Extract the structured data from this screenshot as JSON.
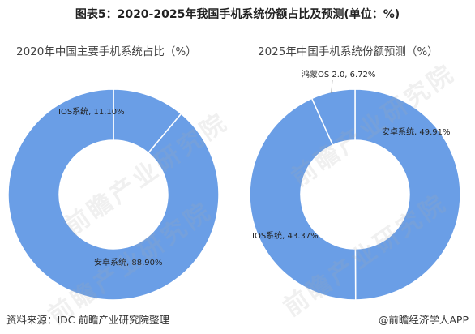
{
  "title": "图表5：2020-2025年我国手机系统份额占比及预测(单位：%)",
  "footer": {
    "source": "资料来源：IDC 前瞻产业研究院整理",
    "brand": "@前瞻经济学人APP"
  },
  "watermark": {
    "text": "前瞻产业研究院"
  },
  "colors": {
    "android": "#6a9ee6",
    "ios": "#6a9ee6",
    "hongmeng": "#6a9ee6",
    "border": "#ffffff"
  },
  "chart_data": [
    {
      "type": "pie",
      "donut": true,
      "title": "2020年中国主要手机系统占比（%）",
      "slices": [
        {
          "label": "IOS系统, 11.10%",
          "value": 11.1
        },
        {
          "label": "安卓系统, 88.90%",
          "value": 88.9
        }
      ]
    },
    {
      "type": "pie",
      "donut": true,
      "title": "2025年中国手机系统份额预测（%）",
      "slices": [
        {
          "label": "安卓系统, 49.91%",
          "value": 49.91
        },
        {
          "label": "IOS系统, 43.37%",
          "value": 43.37
        },
        {
          "label": "鸿蒙OS 2.0, 6.72%",
          "value": 6.72
        }
      ]
    }
  ]
}
